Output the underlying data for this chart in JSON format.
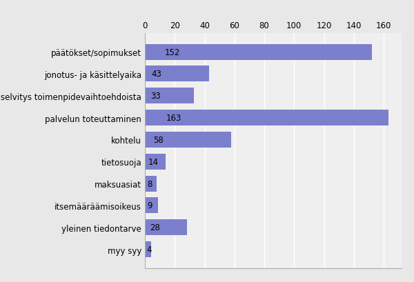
{
  "categories": [
    "myy syy",
    "yleinen tiedontarve",
    "itsemääräämisoikeus",
    "maksuasiat",
    "tietosuoja",
    "kohtelu",
    "palvelun toteuttaminen",
    "selvitys toimenpidevaihtoehdoista",
    "jonotus- ja käsittelyaika",
    "päätökset/sopimukset"
  ],
  "values": [
    4,
    28,
    9,
    8,
    14,
    58,
    163,
    33,
    43,
    152
  ],
  "bar_color": "#7b7fcc",
  "background_color": "#e8e8e8",
  "plot_bg_color": "#efefef",
  "grid_color": "#ffffff",
  "xlim": [
    0,
    172
  ],
  "xticks": [
    0,
    20,
    40,
    60,
    80,
    100,
    120,
    140,
    160
  ],
  "label_fontsize": 8.5,
  "value_fontsize": 8.5,
  "bar_height": 0.72
}
